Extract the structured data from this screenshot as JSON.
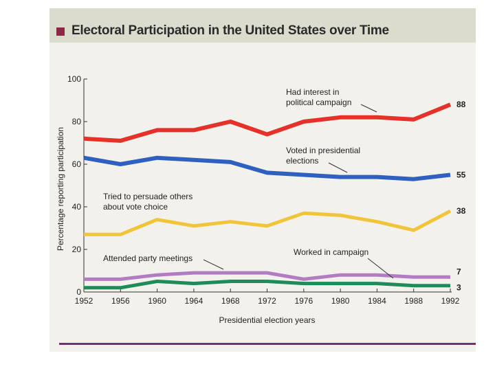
{
  "title": "Electoral Participation in the United States over Time",
  "chart_data": {
    "type": "line",
    "title": "Electoral Participation in the United States over Time",
    "xlabel": "Presidential election years",
    "ylabel": "Percentage reporting participation",
    "ylim": [
      0,
      100
    ],
    "x": [
      1952,
      1956,
      1960,
      1964,
      1968,
      1972,
      1976,
      1980,
      1984,
      1988,
      1992
    ],
    "x_tick_labels": [
      "1952",
      "1956",
      "1960",
      "1964",
      "1968",
      "1972",
      "1976",
      "1980",
      "1984",
      "1988",
      "1992"
    ],
    "y_ticks": [
      0,
      20,
      40,
      60,
      80,
      100
    ],
    "y_tick_labels": [
      "0",
      "20",
      "40",
      "60",
      "80",
      "100"
    ],
    "series": [
      {
        "name": "Had interest in political campaign",
        "label_lines": [
          "Had interest in",
          "political campaign"
        ],
        "color": "#e4322b",
        "values": [
          72,
          71,
          76,
          76,
          80,
          74,
          80,
          82,
          82,
          81,
          88
        ],
        "end_label": "88"
      },
      {
        "name": "Voted in presidential elections",
        "label_lines": [
          "Voted in presidential",
          "elections"
        ],
        "color": "#2f5fbf",
        "values": [
          63,
          60,
          63,
          62,
          61,
          56,
          55,
          54,
          54,
          53,
          55
        ],
        "end_label": "55"
      },
      {
        "name": "Tried to persuade others about vote choice",
        "label_lines": [
          "Tried to persuade others",
          "about vote choice"
        ],
        "color": "#f0c53a",
        "values": [
          27,
          27,
          34,
          31,
          33,
          31,
          37,
          36,
          33,
          29,
          38
        ],
        "end_label": "38"
      },
      {
        "name": "Attended party meetings",
        "label_lines": [
          "Attended party meetings"
        ],
        "color": "#b27cc2",
        "values": [
          6,
          6,
          8,
          9,
          9,
          9,
          6,
          8,
          8,
          7,
          7
        ],
        "end_label": "7"
      },
      {
        "name": "Worked in campaign",
        "label_lines": [
          "Worked in campaign"
        ],
        "color": "#1f8a5a",
        "values": [
          2,
          2,
          5,
          4,
          5,
          5,
          4,
          4,
          4,
          3,
          3
        ],
        "end_label": "3"
      }
    ]
  }
}
